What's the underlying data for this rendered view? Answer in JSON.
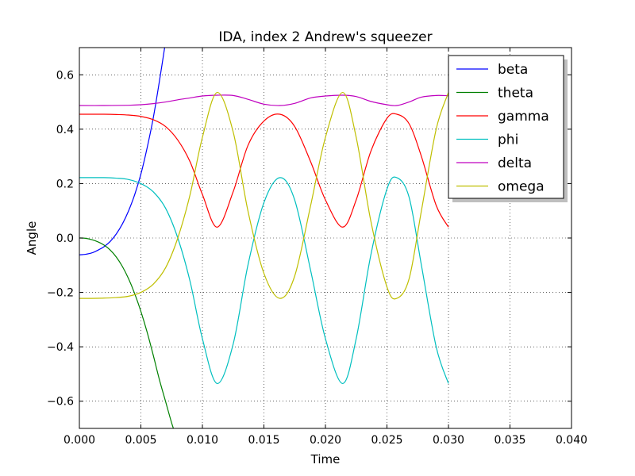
{
  "chart_data": {
    "type": "line",
    "title": "IDA, index 2 Andrew's squeezer",
    "xlabel": "Time",
    "ylabel": "Angle",
    "xlim": [
      0.0,
      0.04
    ],
    "ylim": [
      -0.7,
      0.7
    ],
    "grid": true,
    "legend_position": "top-right",
    "x_ticks": [
      {
        "value": 0.0,
        "label": "0.000"
      },
      {
        "value": 0.005,
        "label": "0.005"
      },
      {
        "value": 0.01,
        "label": "0.010"
      },
      {
        "value": 0.015,
        "label": "0.015"
      },
      {
        "value": 0.02,
        "label": "0.020"
      },
      {
        "value": 0.025,
        "label": "0.025"
      },
      {
        "value": 0.03,
        "label": "0.030"
      },
      {
        "value": 0.035,
        "label": "0.035"
      },
      {
        "value": 0.04,
        "label": "0.040"
      }
    ],
    "y_ticks": [
      {
        "value": 0.6,
        "label": "0.6"
      },
      {
        "value": 0.4,
        "label": "0.4"
      },
      {
        "value": 0.2,
        "label": "0.2"
      },
      {
        "value": 0.0,
        "label": "0.0"
      },
      {
        "value": -0.2,
        "label": "−0.2"
      },
      {
        "value": -0.4,
        "label": "−0.4"
      },
      {
        "value": -0.6,
        "label": "−0.6"
      }
    ],
    "series": [
      {
        "name": "beta",
        "color": "#0000ff",
        "x": [
          0.0,
          0.0005,
          0.001,
          0.0015,
          0.002,
          0.0025,
          0.003,
          0.0035,
          0.004,
          0.0045,
          0.005,
          0.0055,
          0.006,
          0.0065,
          0.007
        ],
        "y": [
          -0.062,
          -0.06,
          -0.055,
          -0.045,
          -0.032,
          -0.013,
          0.015,
          0.052,
          0.1,
          0.16,
          0.235,
          0.33,
          0.44,
          0.575,
          0.72
        ]
      },
      {
        "name": "theta",
        "color": "#008000",
        "x": [
          0.0,
          0.0005,
          0.001,
          0.0015,
          0.002,
          0.0025,
          0.003,
          0.0035,
          0.004,
          0.0045,
          0.005,
          0.0055,
          0.006,
          0.0065,
          0.007,
          0.0075,
          0.0078
        ],
        "y": [
          0.0,
          -0.001,
          -0.006,
          -0.014,
          -0.026,
          -0.044,
          -0.07,
          -0.105,
          -0.15,
          -0.205,
          -0.27,
          -0.345,
          -0.43,
          -0.52,
          -0.6,
          -0.68,
          -0.72
        ]
      },
      {
        "name": "gamma",
        "color": "#ff0000",
        "x": [
          0.0,
          0.001,
          0.002,
          0.003,
          0.004,
          0.005,
          0.006,
          0.007,
          0.008,
          0.009,
          0.01,
          0.0112,
          0.0125,
          0.0137,
          0.015,
          0.0163,
          0.0175,
          0.0188,
          0.02,
          0.0214,
          0.0225,
          0.0237,
          0.025,
          0.0258,
          0.0268,
          0.0278,
          0.029,
          0.03
        ],
        "y": [
          0.455,
          0.455,
          0.455,
          0.454,
          0.452,
          0.447,
          0.435,
          0.41,
          0.36,
          0.28,
          0.16,
          0.04,
          0.17,
          0.34,
          0.43,
          0.455,
          0.41,
          0.28,
          0.14,
          0.04,
          0.14,
          0.32,
          0.44,
          0.455,
          0.42,
          0.3,
          0.12,
          0.04
        ]
      },
      {
        "name": "phi",
        "color": "#00bfbf",
        "x": [
          0.0,
          0.001,
          0.002,
          0.003,
          0.004,
          0.005,
          0.006,
          0.007,
          0.008,
          0.009,
          0.01,
          0.0112,
          0.0125,
          0.0137,
          0.015,
          0.0163,
          0.0175,
          0.0188,
          0.02,
          0.0214,
          0.0225,
          0.0237,
          0.025,
          0.0258,
          0.0268,
          0.0278,
          0.029,
          0.03
        ],
        "y": [
          0.222,
          0.222,
          0.222,
          0.22,
          0.215,
          0.2,
          0.17,
          0.11,
          0.0,
          -0.16,
          -0.37,
          -0.535,
          -0.39,
          -0.1,
          0.13,
          0.222,
          0.14,
          -0.12,
          -0.37,
          -0.535,
          -0.37,
          -0.06,
          0.18,
          0.222,
          0.15,
          -0.1,
          -0.4,
          -0.535
        ]
      },
      {
        "name": "delta",
        "color": "#bf00bf",
        "x": [
          0.0,
          0.002,
          0.004,
          0.005,
          0.006,
          0.007,
          0.008,
          0.009,
          0.01,
          0.0112,
          0.0125,
          0.0137,
          0.015,
          0.0163,
          0.0175,
          0.0188,
          0.02,
          0.0214,
          0.0225,
          0.0237,
          0.025,
          0.0258,
          0.0268,
          0.0278,
          0.029,
          0.03
        ],
        "y": [
          0.487,
          0.487,
          0.488,
          0.49,
          0.494,
          0.5,
          0.508,
          0.515,
          0.522,
          0.525,
          0.524,
          0.51,
          0.492,
          0.487,
          0.495,
          0.515,
          0.522,
          0.525,
          0.52,
          0.502,
          0.49,
          0.487,
          0.5,
          0.518,
          0.524,
          0.523
        ]
      },
      {
        "name": "omega",
        "color": "#bfbf00",
        "x": [
          0.0,
          0.001,
          0.002,
          0.003,
          0.004,
          0.005,
          0.006,
          0.007,
          0.008,
          0.009,
          0.01,
          0.0112,
          0.0125,
          0.0137,
          0.015,
          0.0163,
          0.0175,
          0.0188,
          0.02,
          0.0214,
          0.0225,
          0.0237,
          0.025,
          0.0258,
          0.0268,
          0.0278,
          0.029,
          0.03
        ],
        "y": [
          -0.222,
          -0.222,
          -0.221,
          -0.219,
          -0.214,
          -0.2,
          -0.17,
          -0.11,
          0.0,
          0.16,
          0.37,
          0.535,
          0.39,
          0.1,
          -0.13,
          -0.222,
          -0.14,
          0.12,
          0.37,
          0.535,
          0.37,
          0.06,
          -0.18,
          -0.222,
          -0.15,
          0.1,
          0.4,
          0.535
        ]
      }
    ]
  }
}
